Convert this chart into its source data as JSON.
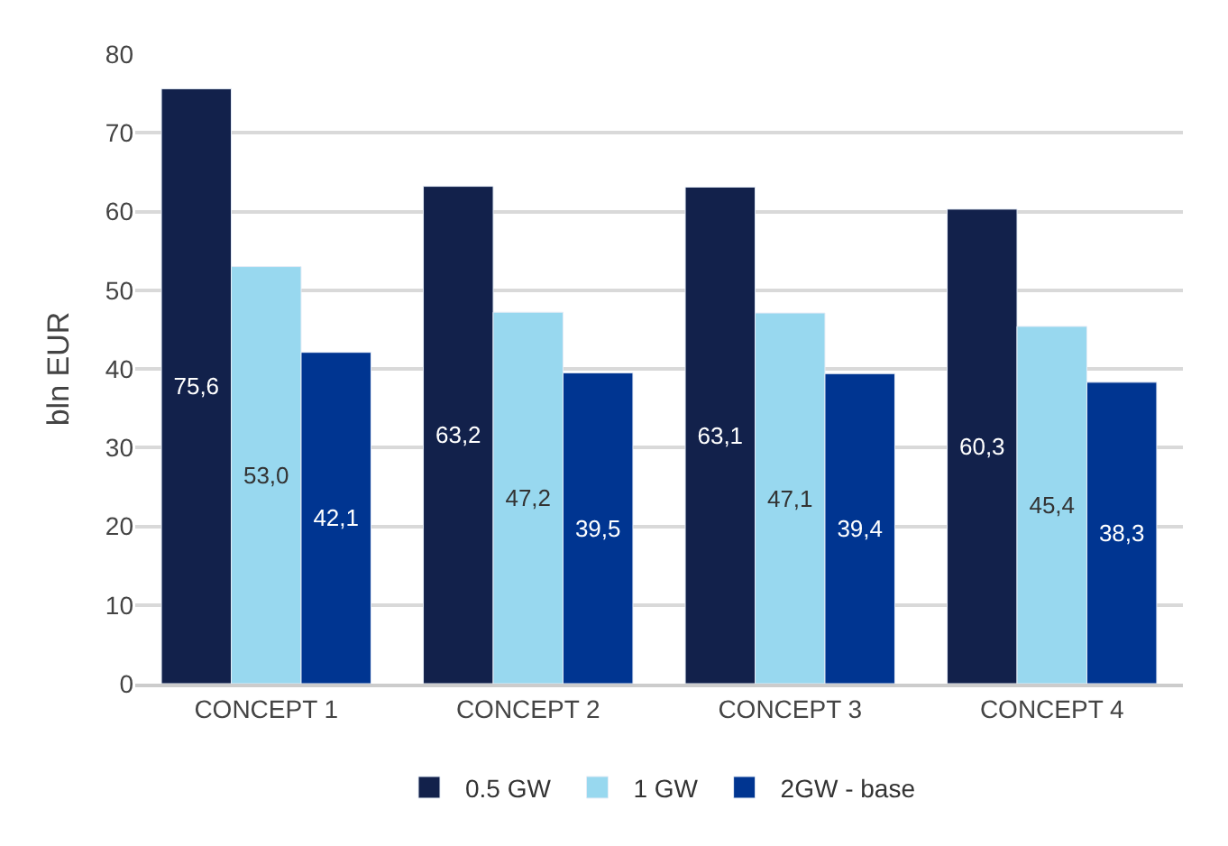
{
  "chart_data": {
    "type": "bar",
    "ylabel": "bln EUR",
    "categories": [
      "CONCEPT 1",
      "CONCEPT 2",
      "CONCEPT 3",
      "CONCEPT 4"
    ],
    "series": [
      {
        "name": "0.5 GW",
        "color": "#12214b",
        "values": [
          75.6,
          63.2,
          63.1,
          60.3
        ],
        "value_labels": [
          "75,6",
          "63,2",
          "63,1",
          "60,3"
        ]
      },
      {
        "name": "1 GW",
        "color": "#98d8ef",
        "values": [
          53.0,
          47.2,
          47.1,
          45.4
        ],
        "value_labels": [
          "53,0",
          "47,2",
          "47,1",
          "45,4"
        ]
      },
      {
        "name": "2GW - base",
        "color": "#003591",
        "values": [
          42.1,
          39.5,
          39.4,
          38.3
        ],
        "value_labels": [
          "42,1",
          "39,5",
          "39,4",
          "38,3"
        ]
      }
    ],
    "ylim": [
      0,
      80
    ],
    "yticks": [
      0,
      10,
      20,
      30,
      40,
      50,
      60,
      70,
      80
    ],
    "grid": "y",
    "legend": "bottom"
  }
}
